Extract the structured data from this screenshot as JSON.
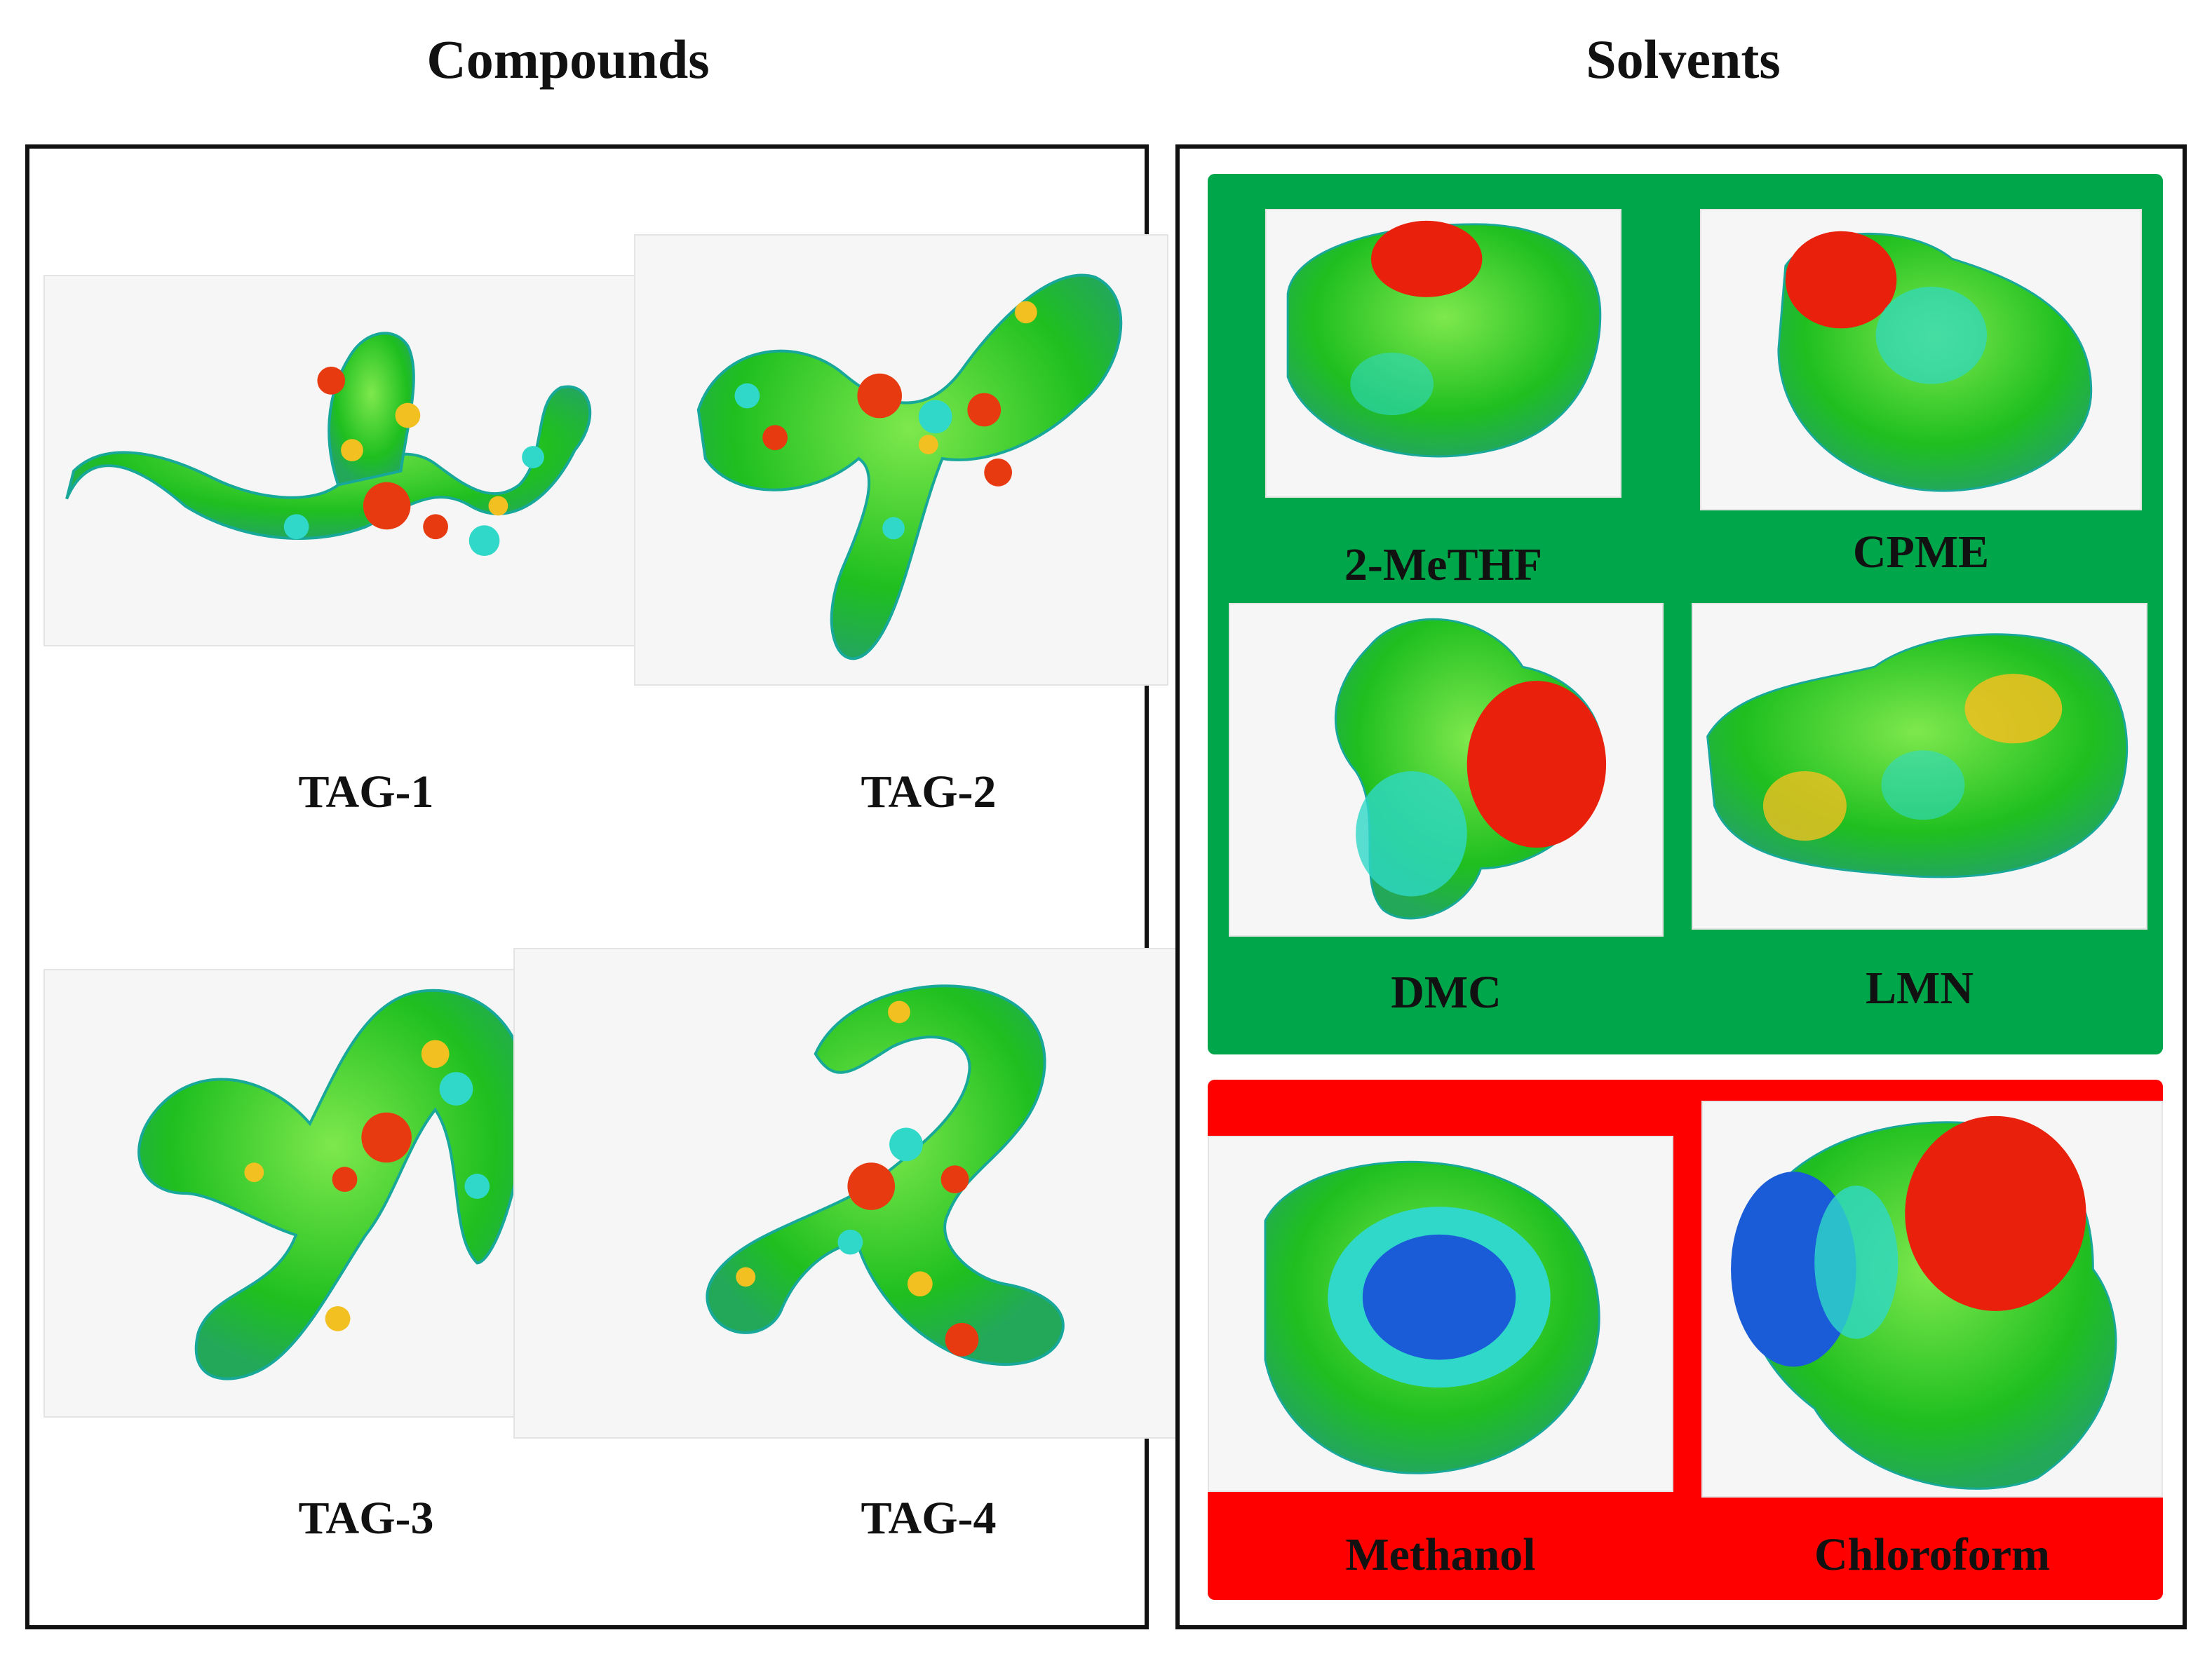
{
  "headings": {
    "compounds": "Compounds",
    "solvents": "Solvents"
  },
  "compounds": [
    "TAG-1",
    "TAG-2",
    "TAG-3",
    "TAG-4"
  ],
  "solvents": {
    "green_group": [
      "2-MeTHF",
      "CPME",
      "DMC",
      "LMN"
    ],
    "red_group": [
      "Methanol",
      "Chloroform"
    ]
  },
  "colors": {
    "green_group_bg": "#00a74a",
    "red_group_bg": "#ff0000",
    "surface_green": "#22c422",
    "surface_red": "#e8200c",
    "surface_blue": "#1a5cd8",
    "surface_cyan": "#20d8c0"
  }
}
